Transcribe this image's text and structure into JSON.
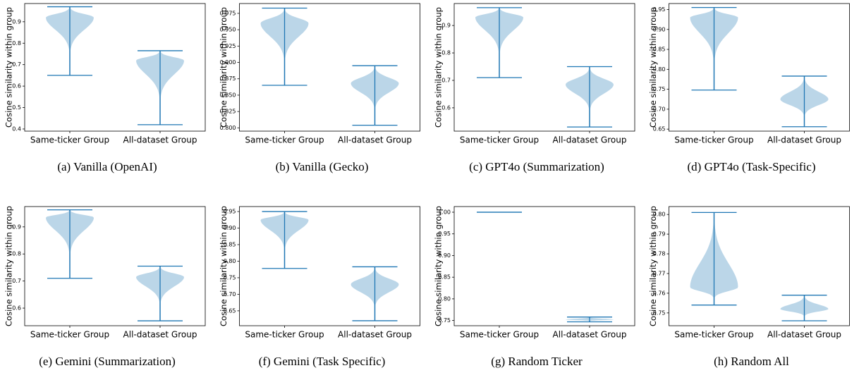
{
  "chart_data": [
    {
      "type": "violin",
      "caption": "(a) Vanilla (OpenAI)",
      "ylabel": "Cosine similarity within group",
      "categories": [
        "Same-ticker Group",
        "All-dataset Group"
      ],
      "min": [
        0.65,
        0.42
      ],
      "max": [
        0.97,
        0.765
      ],
      "peak": [
        0.92,
        0.72
      ],
      "color": "#1f77b4",
      "ylim": [
        0.39,
        0.985
      ],
      "yticks": [
        0.4,
        0.5,
        0.6,
        0.7,
        0.8,
        0.9
      ]
    },
    {
      "type": "violin",
      "caption": "(b) Vanilla (Gecko)",
      "ylabel": "Cosine similarity within group",
      "categories": [
        "Same-ticker Group",
        "All-dataset Group"
      ],
      "min": [
        0.865,
        0.804
      ],
      "max": [
        0.983,
        0.895
      ],
      "peak": [
        0.96,
        0.868
      ],
      "color": "#1f77b4",
      "ylim": [
        0.795,
        0.99
      ],
      "yticks": [
        {
          "value": 0.8,
          "label": "0.800"
        },
        {
          "value": 0.825,
          "label": "0.825"
        },
        {
          "value": 0.85,
          "label": "0.850"
        },
        {
          "value": 0.875,
          "label": "0.875"
        },
        {
          "value": 0.9,
          "label": "0.900"
        },
        {
          "value": 0.925,
          "label": "0.925"
        },
        {
          "value": 0.95,
          "label": "0.950"
        },
        {
          "value": 0.975,
          "label": "0.975"
        }
      ]
    },
    {
      "type": "violin",
      "caption": "(c) GPT4o (Summarization)",
      "ylabel": "Cosine similarity within group",
      "categories": [
        "Same-ticker Group",
        "All-dataset Group"
      ],
      "min": [
        0.71,
        0.53
      ],
      "max": [
        0.965,
        0.75
      ],
      "peak": [
        0.93,
        0.685
      ],
      "color": "#1f77b4",
      "ylim": [
        0.515,
        0.98
      ],
      "yticks": [
        0.6,
        0.7,
        0.8,
        0.9
      ]
    },
    {
      "type": "violin",
      "caption": "(d) GPT4o (Task-Specific)",
      "ylabel": "Cosine similarity within group",
      "categories": [
        "Same-ticker Group",
        "All-dataset Group"
      ],
      "min": [
        0.748,
        0.656
      ],
      "max": [
        0.955,
        0.783
      ],
      "peak": [
        0.93,
        0.725
      ],
      "color": "#1f77b4",
      "ylim": [
        0.645,
        0.965
      ],
      "yticks": [
        0.65,
        {
          "value": 0.7,
          "label": "0.70"
        },
        0.75,
        {
          "value": 0.8,
          "label": "0.80"
        },
        0.85,
        {
          "value": 0.9,
          "label": "0.90"
        },
        0.95
      ]
    },
    {
      "type": "violin",
      "caption": "(e) Gemini (Summarization)",
      "ylabel": "Cosine similarity within group",
      "categories": [
        "Same-ticker Group",
        "All-dataset Group"
      ],
      "min": [
        0.71,
        0.553
      ],
      "max": [
        0.963,
        0.755
      ],
      "peak": [
        0.935,
        0.715
      ],
      "color": "#1f77b4",
      "ylim": [
        0.535,
        0.975
      ],
      "yticks": [
        0.6,
        0.7,
        0.8,
        0.9
      ]
    },
    {
      "type": "violin",
      "caption": "(f) Gemini (Task Specific)",
      "ylabel": "Cosine similarity within group",
      "categories": [
        "Same-ticker Group",
        "All-dataset Group"
      ],
      "min": [
        0.778,
        0.62
      ],
      "max": [
        0.95,
        0.783
      ],
      "peak": [
        0.925,
        0.73
      ],
      "color": "#1f77b4",
      "ylim": [
        0.605,
        0.965
      ],
      "yticks": [
        0.65,
        {
          "value": 0.7,
          "label": "0.70"
        },
        0.75,
        {
          "value": 0.8,
          "label": "0.80"
        },
        0.85,
        {
          "value": 0.9,
          "label": "0.90"
        },
        0.95
      ]
    },
    {
      "type": "violin",
      "caption": "(g) Random Ticker",
      "ylabel": "Cosine similarity within group",
      "categories": [
        "Same-ticker Group",
        "All-dataset Group"
      ],
      "min": [
        1.0,
        0.747
      ],
      "max": [
        1.0,
        0.758
      ],
      "peak": [
        1.0,
        0.752
      ],
      "color": "#1f77b4",
      "ylim": [
        0.738,
        1.013
      ],
      "yticks": [
        0.75,
        {
          "value": 0.8,
          "label": "0.80"
        },
        0.85,
        {
          "value": 0.9,
          "label": "0.90"
        },
        0.95,
        {
          "value": 1.0,
          "label": "1.00"
        }
      ]
    },
    {
      "type": "violin",
      "caption": "(h) Random All",
      "ylabel": "Cosine similarity within group",
      "categories": [
        "Same-ticker Group",
        "All-dataset Group"
      ],
      "min": [
        0.754,
        0.746
      ],
      "max": [
        0.801,
        0.759
      ],
      "peak": [
        0.763,
        0.752
      ],
      "color": "#1f77b4",
      "ylim": [
        0.7435,
        0.804
      ],
      "yticks": [
        0.75,
        0.76,
        0.77,
        0.78,
        0.79,
        {
          "value": 0.8,
          "label": "0.80"
        }
      ]
    }
  ]
}
